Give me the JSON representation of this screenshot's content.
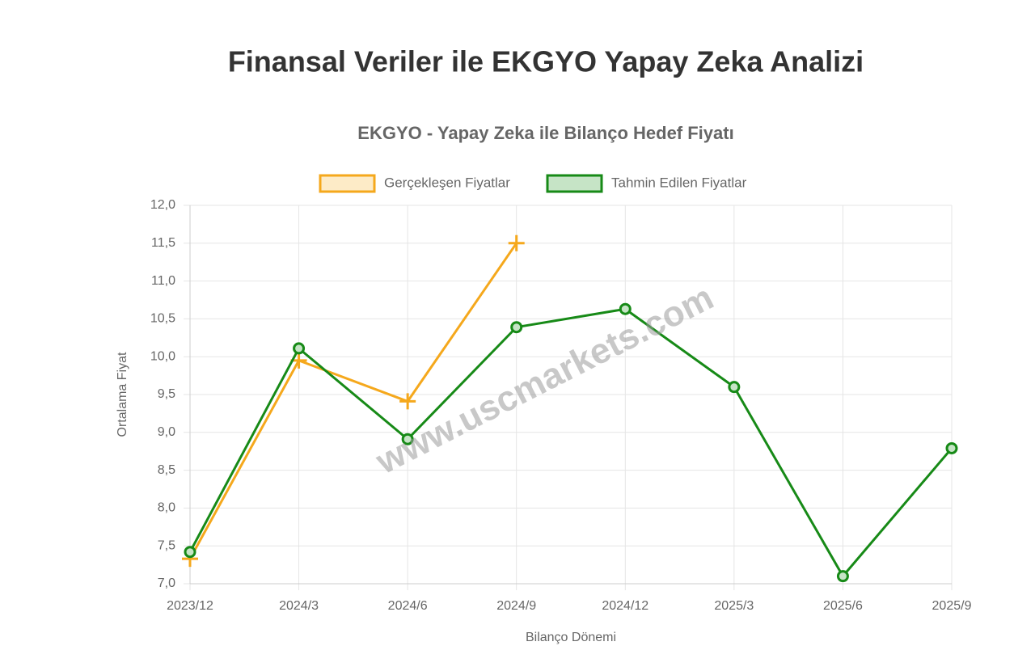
{
  "page_title": "Finansal Veriler ile EKGYO Yapay Zeka Analizi",
  "chart_data": {
    "type": "line",
    "title": "EKGYO - Yapay Zeka ile Bilanço Hedef Fiyatı",
    "x_label": "Bilanço Dönemi",
    "y_label": "Ortalama Fiyat",
    "watermark": "www.uscmarkets.com",
    "categories": [
      "2023/12",
      "2024/3",
      "2024/6",
      "2024/9",
      "2024/12",
      "2025/3",
      "2025/6",
      "2025/9"
    ],
    "series": [
      {
        "name": "Gerçekleşen Fiyatlar",
        "color": "#f5a81c",
        "fill": "#fdebc7",
        "marker": "cross",
        "values": [
          7.33,
          9.95,
          9.41,
          11.5,
          null,
          null,
          null,
          null
        ]
      },
      {
        "name": "Tahmin Edilen Fiyatlar",
        "color": "#178a17",
        "fill": "#c6e4c6",
        "marker": "circle",
        "values": [
          7.42,
          10.11,
          8.91,
          10.39,
          10.63,
          9.6,
          7.1,
          8.79
        ]
      }
    ],
    "ylim": [
      7,
      12
    ],
    "yticks": [
      {
        "value": 7,
        "label": "7,0"
      },
      {
        "value": 7.5,
        "label": "7,5"
      },
      {
        "value": 8,
        "label": "8,0"
      },
      {
        "value": 8.5,
        "label": "8,5"
      },
      {
        "value": 9,
        "label": "9,0"
      },
      {
        "value": 9.5,
        "label": "9,5"
      },
      {
        "value": 10,
        "label": "10,0"
      },
      {
        "value": 10.5,
        "label": "10,5"
      },
      {
        "value": 11,
        "label": "11,0"
      },
      {
        "value": 11.5,
        "label": "11,5"
      },
      {
        "value": 12,
        "label": "12,0"
      }
    ],
    "grid": true,
    "legend": "top"
  }
}
